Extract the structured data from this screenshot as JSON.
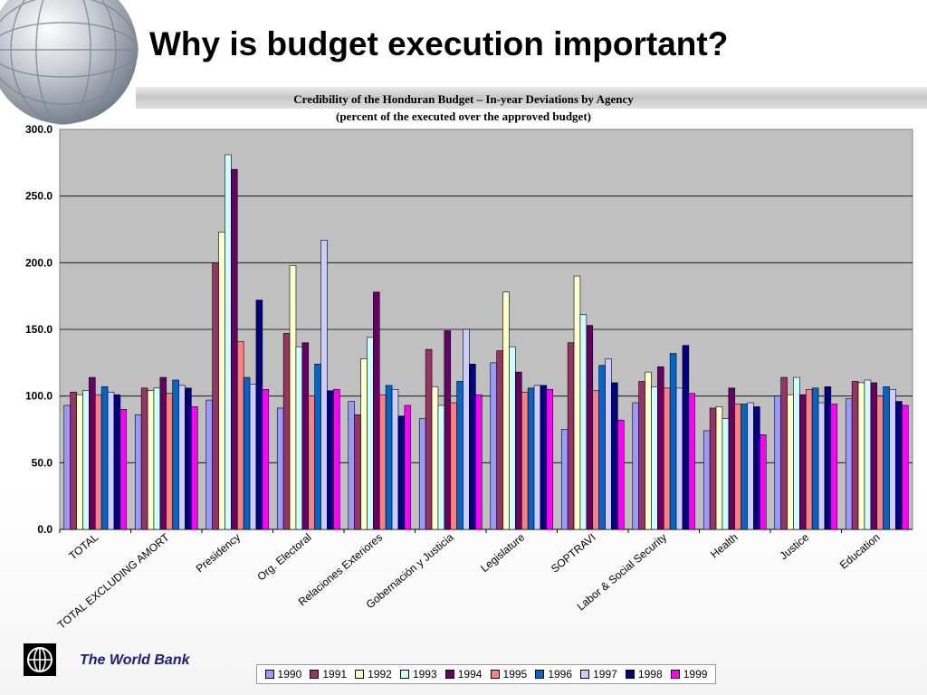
{
  "slide": {
    "title": "Why is budget execution important?",
    "footer": "The World Bank"
  },
  "icons": [
    "globe-icon",
    "world-bank-logo-icon"
  ],
  "chart_data": {
    "type": "bar",
    "title": "Credibility of the Honduran Budget – In-year Deviations by Agency",
    "subtitle": "(percent of the executed over the approved budget)",
    "xlabel": "",
    "ylabel": "",
    "ylim": [
      0,
      300
    ],
    "yticks": [
      "0.0",
      "50.0",
      "100.0",
      "150.0",
      "200.0",
      "250.0",
      "300.0"
    ],
    "grid": true,
    "legend_position": "bottom",
    "plot_background": "#c0c0c0",
    "categories": [
      "TOTAL",
      "TOTAL EXCLUDING AMORT",
      "Presidency",
      "Org. Electoral",
      "Relaciones Exteriores",
      "Gobernación y Justicia",
      "Legislature",
      "SOPTRAVI",
      "Labor & Social Security",
      "Health",
      "Justice",
      "Education"
    ],
    "series": [
      {
        "name": "1990",
        "color": "#9999ff",
        "values": [
          93,
          86,
          97,
          91,
          96,
          83,
          125,
          75,
          95,
          74,
          100,
          98
        ]
      },
      {
        "name": "1991",
        "color": "#993366",
        "values": [
          103,
          106,
          200,
          147,
          86,
          135,
          134,
          140,
          111,
          91,
          114,
          111
        ]
      },
      {
        "name": "1992",
        "color": "#ffffcc",
        "values": [
          101,
          104,
          223,
          198,
          128,
          107,
          178,
          190,
          118,
          92,
          101,
          110
        ]
      },
      {
        "name": "1993",
        "color": "#ccffff",
        "values": [
          104,
          106,
          281,
          137,
          144,
          93,
          137,
          161,
          107,
          83,
          114,
          112
        ]
      },
      {
        "name": "1994",
        "color": "#660066",
        "values": [
          114,
          114,
          270,
          140,
          178,
          149,
          118,
          153,
          122,
          106,
          101,
          110
        ]
      },
      {
        "name": "1995",
        "color": "#ff8080",
        "values": [
          101,
          102,
          141,
          100,
          101,
          95,
          103,
          104,
          106,
          94,
          105,
          100
        ]
      },
      {
        "name": "1996",
        "color": "#0066cc",
        "values": [
          107,
          112,
          114,
          124,
          108,
          111,
          106,
          123,
          132,
          94,
          106,
          107
        ]
      },
      {
        "name": "1997",
        "color": "#ccccff",
        "values": [
          103,
          108,
          109,
          217,
          105,
          150,
          108,
          128,
          106,
          95,
          95,
          105
        ]
      },
      {
        "name": "1998",
        "color": "#000080",
        "values": [
          101,
          106,
          172,
          104,
          85,
          124,
          108,
          110,
          138,
          92,
          107,
          96
        ]
      },
      {
        "name": "1999",
        "color": "#ff00ff",
        "values": [
          90,
          92,
          105,
          105,
          93,
          101,
          105,
          82,
          102,
          71,
          94,
          93
        ]
      }
    ]
  }
}
